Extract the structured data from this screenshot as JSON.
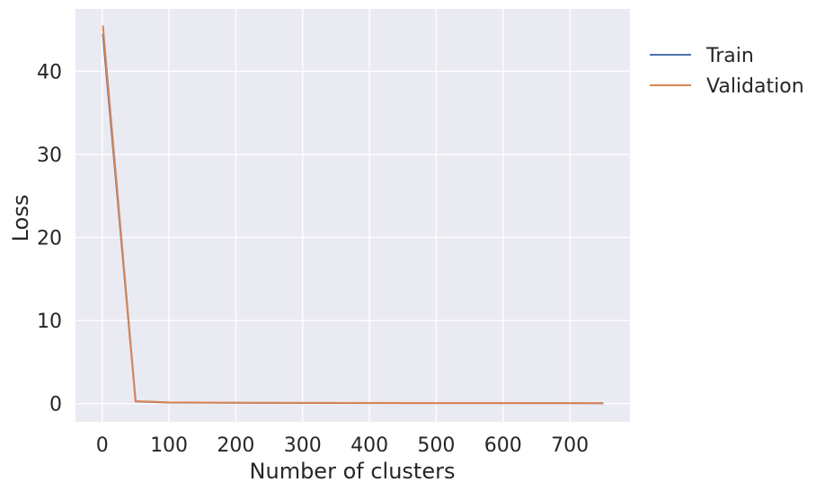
{
  "chart_data": {
    "type": "line",
    "xlabel": "Number of clusters",
    "ylabel": "Loss",
    "xlim": [
      -40,
      790
    ],
    "ylim": [
      -2.2,
      47.5
    ],
    "xticks": [
      0,
      100,
      200,
      300,
      400,
      500,
      600,
      700
    ],
    "yticks": [
      0,
      10,
      20,
      30,
      40
    ],
    "grid": true,
    "legend_position": "outside-top-right",
    "series": [
      {
        "name": "Train",
        "color": "#4c72b0",
        "x": [
          1,
          50,
          100,
          250,
          500,
          750
        ],
        "y": [
          44.5,
          0.25,
          0.12,
          0.08,
          0.06,
          0.05
        ]
      },
      {
        "name": "Validation",
        "color": "#dd8452",
        "x": [
          1,
          50,
          100,
          250,
          500,
          750
        ],
        "y": [
          45.5,
          0.3,
          0.14,
          0.09,
          0.07,
          0.06
        ]
      }
    ]
  }
}
